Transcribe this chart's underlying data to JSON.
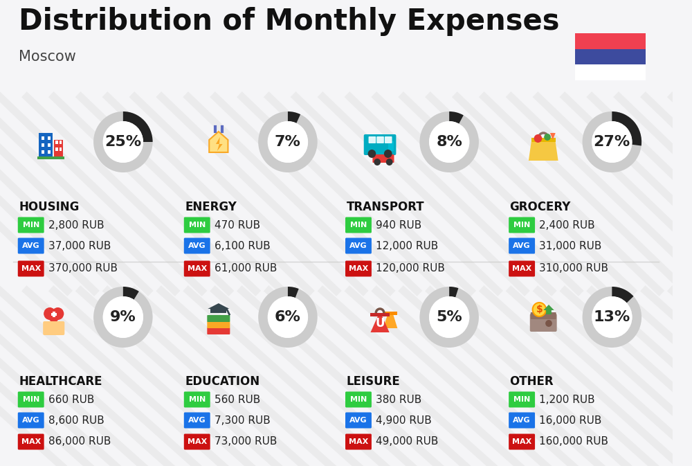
{
  "title": "Distribution of Monthly Expenses",
  "subtitle": "Moscow",
  "background_color": "#f5f5f7",
  "categories": [
    {
      "name": "HOUSING",
      "pct": 25,
      "min_val": "2,800 RUB",
      "avg_val": "37,000 RUB",
      "max_val": "370,000 RUB",
      "row": 0,
      "col": 0
    },
    {
      "name": "ENERGY",
      "pct": 7,
      "min_val": "470 RUB",
      "avg_val": "6,100 RUB",
      "max_val": "61,000 RUB",
      "row": 0,
      "col": 1
    },
    {
      "name": "TRANSPORT",
      "pct": 8,
      "min_val": "940 RUB",
      "avg_val": "12,000 RUB",
      "max_val": "120,000 RUB",
      "row": 0,
      "col": 2
    },
    {
      "name": "GROCERY",
      "pct": 27,
      "min_val": "2,400 RUB",
      "avg_val": "31,000 RUB",
      "max_val": "310,000 RUB",
      "row": 0,
      "col": 3
    },
    {
      "name": "HEALTHCARE",
      "pct": 9,
      "min_val": "660 RUB",
      "avg_val": "8,600 RUB",
      "max_val": "86,000 RUB",
      "row": 1,
      "col": 0
    },
    {
      "name": "EDUCATION",
      "pct": 6,
      "min_val": "560 RUB",
      "avg_val": "7,300 RUB",
      "max_val": "73,000 RUB",
      "row": 1,
      "col": 1
    },
    {
      "name": "LEISURE",
      "pct": 5,
      "min_val": "380 RUB",
      "avg_val": "4,900 RUB",
      "max_val": "49,000 RUB",
      "row": 1,
      "col": 2
    },
    {
      "name": "OTHER",
      "pct": 13,
      "min_val": "1,200 RUB",
      "avg_val": "16,000 RUB",
      "max_val": "160,000 RUB",
      "row": 1,
      "col": 3
    }
  ],
  "color_min": "#2ecc40",
  "color_avg": "#1a73e8",
  "color_max": "#cc1111",
  "arc_dark": "#222222",
  "arc_light": "#cccccc",
  "flag_blue": "#3d4b9e",
  "flag_red": "#f04050",
  "title_fontsize": 30,
  "subtitle_fontsize": 15,
  "cat_fontsize": 12,
  "val_fontsize": 11,
  "pct_fontsize": 16,
  "badge_fontsize": 8
}
